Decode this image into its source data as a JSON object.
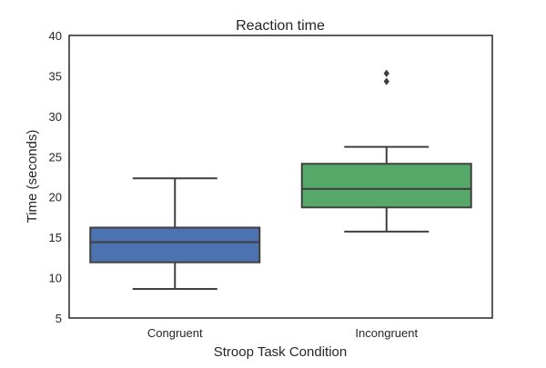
{
  "chart_data": {
    "type": "box",
    "title": "Reaction time",
    "xlabel": "Stroop Task Condition",
    "ylabel": "Time (seconds)",
    "ylim": [
      5,
      40
    ],
    "yticks": [
      5,
      10,
      15,
      20,
      25,
      30,
      35,
      40
    ],
    "categories": [
      "Congruent",
      "Incongruent"
    ],
    "boxes": [
      {
        "category": "Congruent",
        "whisker_low": 8.6,
        "q1": 11.9,
        "median": 14.4,
        "q3": 16.2,
        "whisker_high": 22.3,
        "outliers": [],
        "color": "#4C72B0"
      },
      {
        "category": "Incongruent",
        "whisker_low": 15.7,
        "q1": 18.7,
        "median": 21.0,
        "q3": 24.1,
        "whisker_high": 26.2,
        "outliers": [
          34.3,
          35.3
        ],
        "color": "#55A868"
      }
    ],
    "grid": false,
    "legend": "none"
  },
  "colors": {
    "line": "#3f3f3f",
    "frame": "#262626"
  }
}
